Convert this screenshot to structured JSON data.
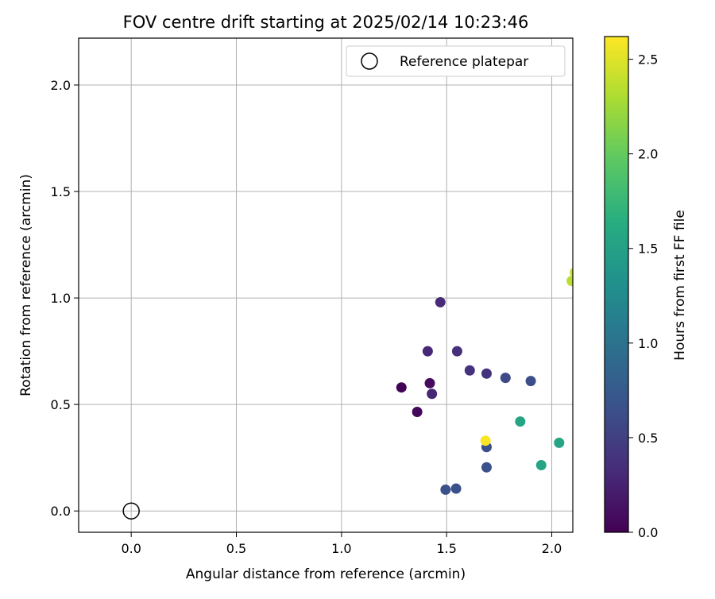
{
  "chart_data": {
    "type": "scatter",
    "title": "FOV centre drift starting at 2025/02/14 10:23:46",
    "xlabel": "Angular distance from reference (arcmin)",
    "ylabel": "Rotation from reference (arcmin)",
    "xlim": [
      -0.25,
      2.1
    ],
    "ylim": [
      -0.1,
      2.22
    ],
    "xticks": [
      0.0,
      0.5,
      1.0,
      1.5,
      2.0
    ],
    "xtick_labels": [
      "0.0",
      "0.5",
      "1.0",
      "1.5",
      "2.0"
    ],
    "yticks": [
      0.0,
      0.5,
      1.0,
      1.5,
      2.0
    ],
    "ytick_labels": [
      "0.0",
      "0.5",
      "1.0",
      "1.5",
      "2.0"
    ],
    "grid": true,
    "legend": {
      "placement": "top-right",
      "entries": [
        {
          "label": "Reference platepar",
          "marker": "open-circle"
        }
      ]
    },
    "reference_point": {
      "x": 0.0,
      "y": 0.0,
      "label": "Reference platepar"
    },
    "colorbar": {
      "label": "Hours from first FF file",
      "colormap": "viridis",
      "range": [
        0.0,
        2.62
      ],
      "ticks": [
        0.0,
        0.5,
        1.0,
        1.5,
        2.0,
        2.5
      ],
      "tick_labels": [
        "0.0",
        "0.5",
        "1.0",
        "1.5",
        "2.0",
        "2.5"
      ]
    },
    "points": [
      {
        "x": 1.285,
        "y": 0.58,
        "c": 0.02
      },
      {
        "x": 1.36,
        "y": 0.465,
        "c": 0.05
      },
      {
        "x": 1.42,
        "y": 0.6,
        "c": 0.08
      },
      {
        "x": 1.43,
        "y": 0.55,
        "c": 0.28
      },
      {
        "x": 1.41,
        "y": 0.75,
        "c": 0.3
      },
      {
        "x": 1.47,
        "y": 0.98,
        "c": 0.32
      },
      {
        "x": 1.55,
        "y": 0.75,
        "c": 0.35
      },
      {
        "x": 1.61,
        "y": 0.66,
        "c": 0.38
      },
      {
        "x": 1.69,
        "y": 0.645,
        "c": 0.4
      },
      {
        "x": 1.78,
        "y": 0.625,
        "c": 0.58
      },
      {
        "x": 1.9,
        "y": 0.61,
        "c": 0.62
      },
      {
        "x": 1.69,
        "y": 0.3,
        "c": 0.65
      },
      {
        "x": 1.69,
        "y": 0.205,
        "c": 0.66
      },
      {
        "x": 1.495,
        "y": 0.1,
        "c": 0.66
      },
      {
        "x": 1.545,
        "y": 0.105,
        "c": 0.66
      },
      {
        "x": 1.85,
        "y": 0.42,
        "c": 1.55
      },
      {
        "x": 1.95,
        "y": 0.215,
        "c": 1.55
      },
      {
        "x": 2.035,
        "y": 0.32,
        "c": 1.55
      },
      {
        "x": 2.095,
        "y": 1.08,
        "c": 2.35
      },
      {
        "x": 2.11,
        "y": 1.12,
        "c": 2.4
      },
      {
        "x": 1.685,
        "y": 0.33,
        "c": 2.6
      }
    ]
  }
}
